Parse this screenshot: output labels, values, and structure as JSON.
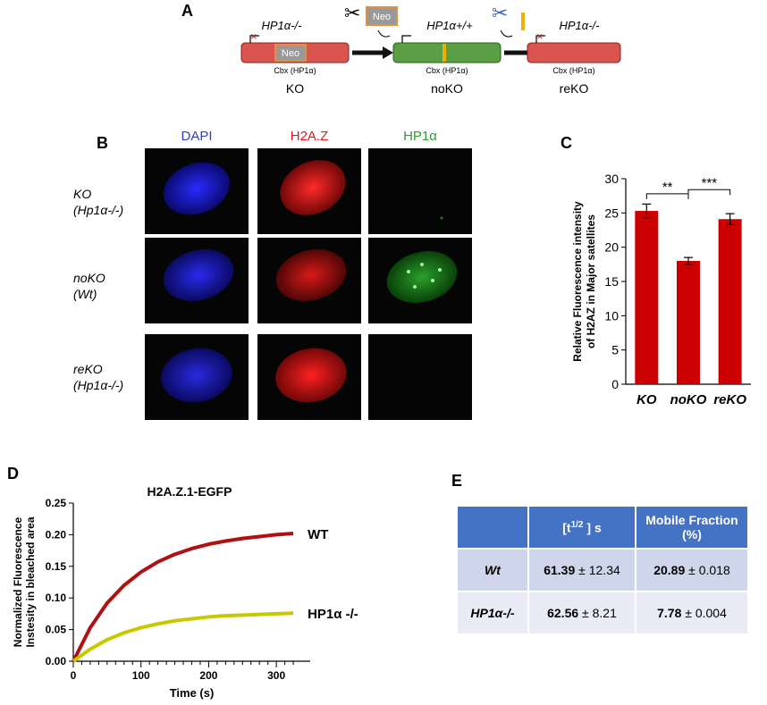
{
  "panels": {
    "a": "A",
    "b": "B",
    "c": "C",
    "d": "D",
    "e": "E"
  },
  "schematic": {
    "constructs": [
      {
        "top": "HP1α-/-",
        "inner": "Neo",
        "bottom": "Cbx (HP1α)",
        "label": "KO",
        "color": "#d9534f"
      },
      {
        "top": "HP1α+/+",
        "inner": "",
        "bottom": "Cbx (HP1α)",
        "label": "noKO",
        "color": "#5a9e46"
      },
      {
        "top": "HP1α-/-",
        "inner": "",
        "bottom": "Cbx (HP1α)",
        "label": "reKO",
        "color": "#d9534f"
      }
    ],
    "neo_tag": "Neo"
  },
  "microscopy": {
    "columns": [
      {
        "label": "DAPI",
        "color": "#2a3fd6"
      },
      {
        "label": "H2A.Z",
        "color": "#e01818"
      },
      {
        "label": "HP1α",
        "color": "#2f9e2f"
      }
    ],
    "rows": [
      {
        "name": "KO",
        "genotype": "(Hp1α-/-)"
      },
      {
        "name": "noKO",
        "genotype": "(Wt)"
      },
      {
        "name": "reKO",
        "genotype": "(Hp1α-/-)"
      }
    ]
  },
  "chart_data": [
    {
      "type": "bar",
      "panel": "C",
      "ylabel": "Relative Fluorescence intensity of H2AZ in Major satellites",
      "categories": [
        "KO",
        "noKO",
        "reKO"
      ],
      "values": [
        25.3,
        18.0,
        24.1
      ],
      "errors": [
        1.0,
        0.5,
        0.8
      ],
      "ylim": [
        0,
        30
      ],
      "yticks": [
        0,
        5,
        10,
        15,
        20,
        25,
        30
      ],
      "bar_color": "#cc0000",
      "significance": [
        {
          "from": "KO",
          "to": "noKO",
          "label": "**"
        },
        {
          "from": "noKO",
          "to": "reKO",
          "label": "***"
        }
      ]
    },
    {
      "type": "line",
      "panel": "D",
      "title": "H2A.Z.1-EGFP",
      "xlabel": "Time (s)",
      "ylabel": "Normalized Fluorescence Instesity in bleached area",
      "xlim": [
        0,
        350
      ],
      "ylim": [
        0,
        0.25
      ],
      "xticks": [
        0,
        100,
        200,
        300
      ],
      "yticks": [
        0.0,
        0.05,
        0.1,
        0.15,
        0.2,
        0.25
      ],
      "x": [
        0,
        25,
        50,
        75,
        100,
        125,
        150,
        175,
        200,
        225,
        250,
        275,
        300,
        325
      ],
      "series": [
        {
          "name": "WT",
          "color": "#b01010",
          "values": [
            0,
            0.053,
            0.092,
            0.12,
            0.141,
            0.157,
            0.169,
            0.178,
            0.185,
            0.19,
            0.194,
            0.197,
            0.2,
            0.202
          ]
        },
        {
          "name": "HP1α -/-",
          "color": "#c8c800",
          "values": [
            0,
            0.019,
            0.034,
            0.045,
            0.053,
            0.059,
            0.064,
            0.067,
            0.07,
            0.072,
            0.073,
            0.074,
            0.075,
            0.076
          ]
        }
      ]
    }
  ],
  "table": {
    "headers": [
      "",
      "[t1/2 ] s",
      "Mobile Fraction (%)"
    ],
    "rows": [
      {
        "name": "Wt",
        "t_half": "61.39",
        "t_half_err": "± 12.34",
        "mobile": "20.89",
        "mobile_err": "± 0.018"
      },
      {
        "name": "HP1α-/-",
        "t_half": "62.56",
        "t_half_err": "± 8.21",
        "mobile": "7.78",
        "mobile_err": "± 0.004"
      }
    ]
  }
}
